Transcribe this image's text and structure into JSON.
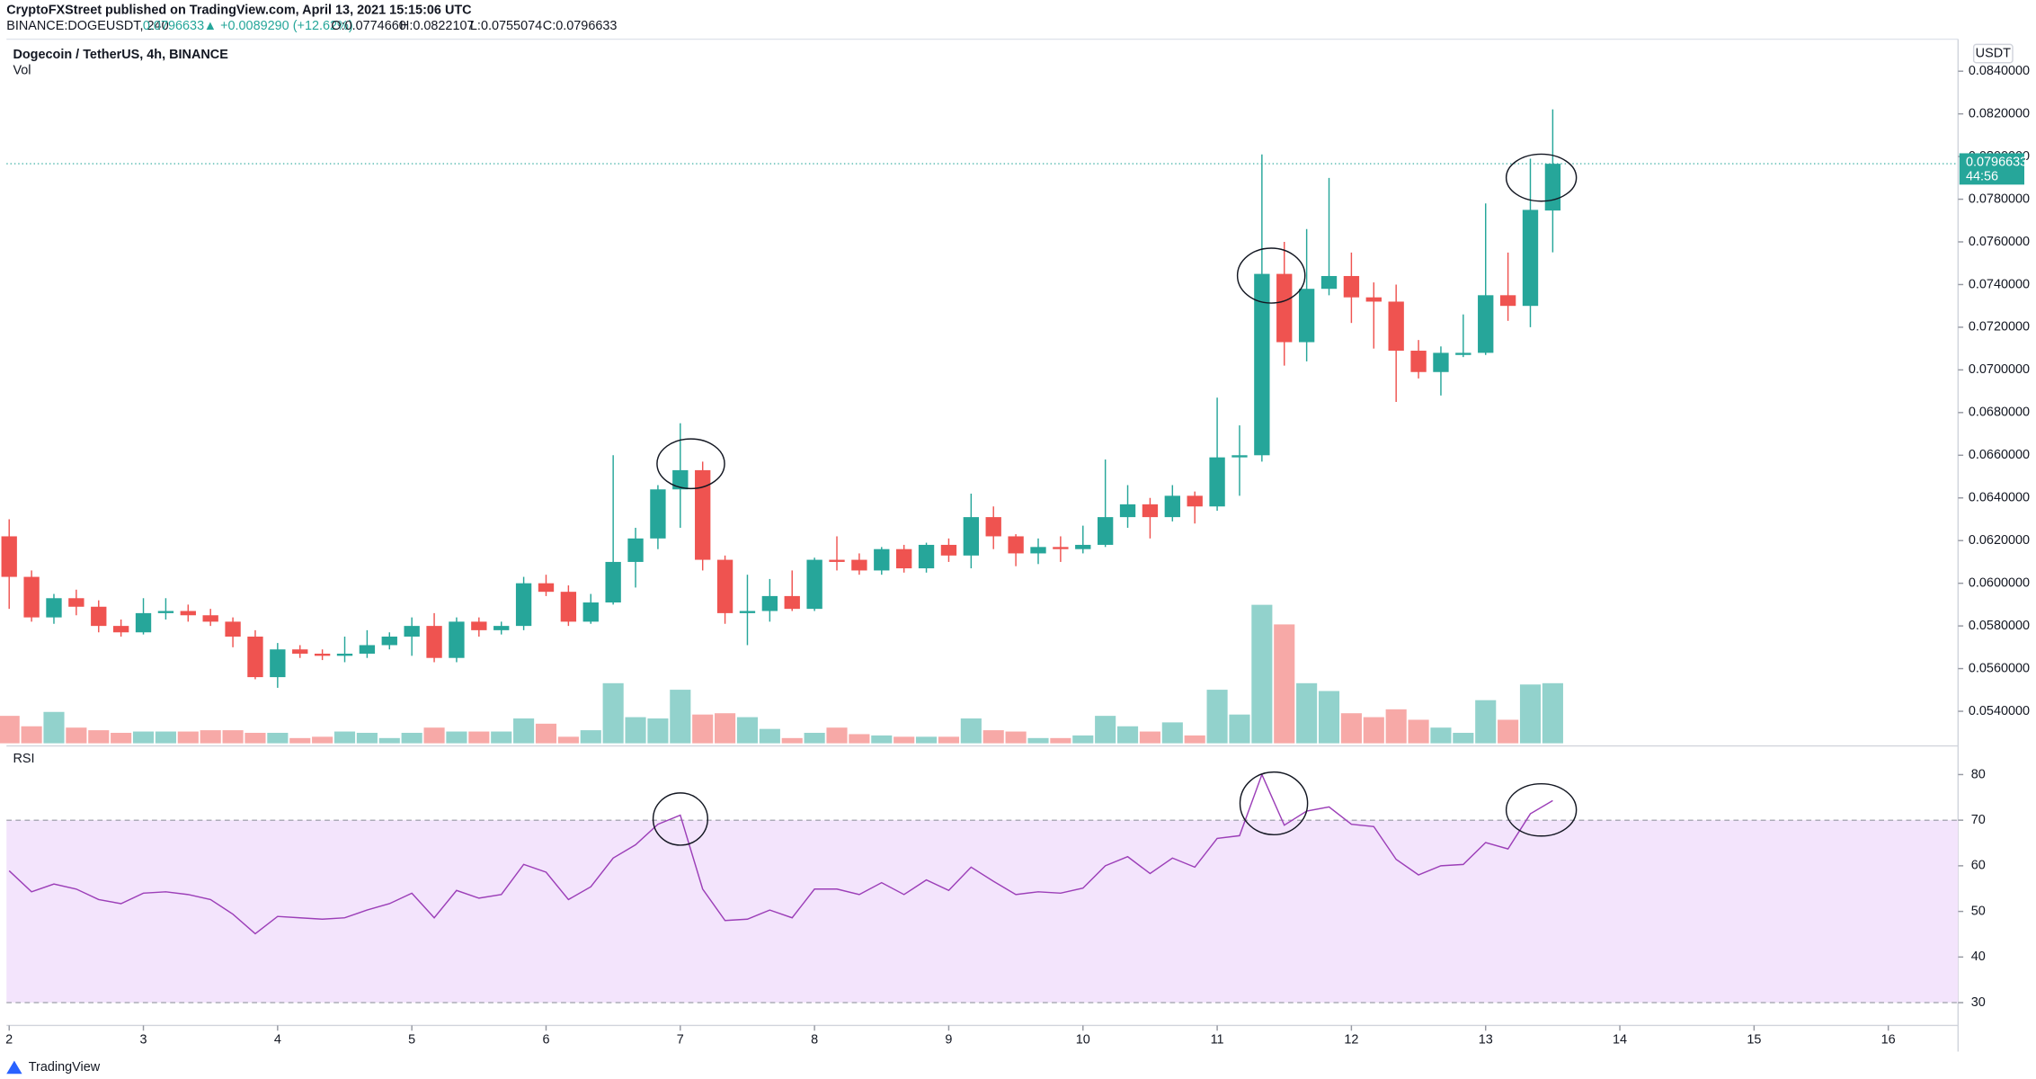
{
  "header": {
    "attribution": "CryptoFXStreet published on TradingView.com, April 13, 2021 15:15:06 UTC",
    "symbol": "BINANCE:DOGEUSDT, 240",
    "last": "0.0796633",
    "change": "▲ +0.0089290 (+12.62%)",
    "ohlc": [
      "O:0.0774660",
      "H:0.0822107",
      "L:0.0755074",
      "C:0.0796633"
    ],
    "brand": "TradingView"
  },
  "chart_data": {
    "type": "candlestick",
    "title": "Dogecoin / TetherUS, 4h, BINANCE",
    "volume_label": "Vol",
    "currency": "USDT",
    "x": [
      2,
      2.1667,
      2.3333,
      2.5,
      2.6667,
      2.8333,
      3,
      3.1667,
      3.3333,
      3.5,
      3.6667,
      3.8333,
      4,
      4.1667,
      4.3333,
      4.5,
      4.6667,
      4.8333,
      5,
      5.1667,
      5.3333,
      5.5,
      5.6667,
      5.8333,
      6,
      6.1667,
      6.3333,
      6.5,
      6.6667,
      6.8333,
      7,
      7.1667,
      7.3333,
      7.5,
      7.6667,
      7.8333,
      8,
      8.1667,
      8.3333,
      8.5,
      8.6667,
      8.8333,
      9,
      9.1667,
      9.3333,
      9.5,
      9.6667,
      9.8333,
      10,
      10.1667,
      10.3333,
      10.5,
      10.6667,
      10.8333,
      11,
      11.1667,
      11.3333,
      11.5,
      11.6667,
      11.8333,
      12,
      12.1667,
      12.3333,
      12.5,
      12.6667,
      12.8333,
      13,
      13.1667,
      13.3333,
      13.5
    ],
    "open": [
      0.0622,
      0.0603,
      0.0584,
      0.0593,
      0.0589,
      0.058,
      0.0577,
      0.0586,
      0.0587,
      0.0585,
      0.0582,
      0.0575,
      0.0556,
      0.0569,
      0.0567,
      0.0566,
      0.0567,
      0.0571,
      0.0575,
      0.058,
      0.0565,
      0.0582,
      0.0578,
      0.058,
      0.06,
      0.0596,
      0.0582,
      0.0591,
      0.061,
      0.0621,
      0.0644,
      0.0653,
      0.0611,
      0.0586,
      0.0587,
      0.0594,
      0.0588,
      0.0611,
      0.0611,
      0.0606,
      0.0616,
      0.0607,
      0.0618,
      0.0613,
      0.0631,
      0.0622,
      0.0614,
      0.0617,
      0.0616,
      0.0618,
      0.0631,
      0.0637,
      0.0631,
      0.0641,
      0.0636,
      0.0659,
      0.066,
      0.0745,
      0.0713,
      0.0738,
      0.0744,
      0.0734,
      0.0732,
      0.0709,
      0.0699,
      0.0707,
      0.0708,
      0.0735,
      0.073,
      0.07747
    ],
    "high": [
      0.063,
      0.0606,
      0.0595,
      0.0597,
      0.0592,
      0.0583,
      0.0593,
      0.0593,
      0.059,
      0.0588,
      0.0584,
      0.0578,
      0.0572,
      0.0571,
      0.0569,
      0.0575,
      0.0578,
      0.0577,
      0.0584,
      0.0586,
      0.0584,
      0.0584,
      0.0582,
      0.0603,
      0.0604,
      0.0599,
      0.0595,
      0.066,
      0.0626,
      0.0646,
      0.0675,
      0.0657,
      0.0613,
      0.0604,
      0.0602,
      0.0606,
      0.0612,
      0.0622,
      0.0614,
      0.0617,
      0.0618,
      0.0619,
      0.0621,
      0.0642,
      0.0636,
      0.0623,
      0.0621,
      0.0622,
      0.0627,
      0.0658,
      0.0646,
      0.064,
      0.0646,
      0.0643,
      0.0687,
      0.0674,
      0.0801,
      0.076,
      0.0766,
      0.079,
      0.0755,
      0.0741,
      0.074,
      0.0714,
      0.0711,
      0.0726,
      0.0778,
      0.0755,
      0.0799,
      0.08221
    ],
    "low": [
      0.0588,
      0.0582,
      0.0581,
      0.0585,
      0.0577,
      0.0575,
      0.0576,
      0.0583,
      0.0582,
      0.058,
      0.057,
      0.0555,
      0.0551,
      0.0565,
      0.0564,
      0.0563,
      0.0565,
      0.0569,
      0.0566,
      0.0563,
      0.0563,
      0.0575,
      0.0576,
      0.0578,
      0.0594,
      0.058,
      0.0581,
      0.059,
      0.0598,
      0.0616,
      0.0626,
      0.0606,
      0.0581,
      0.0571,
      0.0582,
      0.0587,
      0.0587,
      0.0606,
      0.0604,
      0.0604,
      0.0605,
      0.0605,
      0.061,
      0.0607,
      0.0616,
      0.0608,
      0.0609,
      0.061,
      0.0614,
      0.0617,
      0.0626,
      0.0621,
      0.0629,
      0.0628,
      0.0634,
      0.0641,
      0.0657,
      0.0702,
      0.0704,
      0.0735,
      0.0722,
      0.071,
      0.0685,
      0.0696,
      0.0688,
      0.0706,
      0.0707,
      0.0723,
      0.072,
      0.07551
    ],
    "close": [
      0.0603,
      0.0584,
      0.0593,
      0.0589,
      0.058,
      0.0577,
      0.0586,
      0.0587,
      0.0585,
      0.0582,
      0.0575,
      0.0556,
      0.0569,
      0.0567,
      0.0566,
      0.0567,
      0.0571,
      0.0575,
      0.058,
      0.0565,
      0.0582,
      0.0578,
      0.058,
      0.06,
      0.0596,
      0.0582,
      0.0591,
      0.061,
      0.0621,
      0.0644,
      0.0653,
      0.0611,
      0.0586,
      0.0587,
      0.0594,
      0.0588,
      0.0611,
      0.061,
      0.0606,
      0.0616,
      0.0607,
      0.0618,
      0.0613,
      0.0631,
      0.0622,
      0.0614,
      0.0617,
      0.0616,
      0.0618,
      0.0631,
      0.0637,
      0.0631,
      0.0641,
      0.0636,
      0.0659,
      0.066,
      0.0745,
      0.0713,
      0.0738,
      0.0744,
      0.0734,
      0.0732,
      0.0709,
      0.0699,
      0.0708,
      0.0708,
      0.0735,
      0.073,
      0.0775,
      0.07966
    ],
    "volume": [
      21,
      13,
      24,
      12,
      10,
      8,
      9,
      9,
      9,
      10,
      10,
      8,
      8,
      4,
      5,
      9,
      8,
      4,
      8,
      12,
      9,
      9,
      9,
      19,
      15,
      5,
      10,
      46,
      20,
      19,
      41,
      22,
      23,
      20,
      11,
      4,
      8,
      12,
      7,
      6,
      5,
      5,
      5,
      19,
      10,
      9,
      4,
      4,
      6,
      21,
      13,
      9,
      16,
      6,
      41,
      22,
      106,
      91,
      46,
      40,
      23,
      20,
      26,
      18,
      12,
      8,
      33,
      18,
      45,
      46
    ],
    "up_color": "#26a69a",
    "down_color": "#ef5350",
    "last_price": 0.0796633,
    "countdown": "44:56",
    "ylim": [
      0.0525,
      0.0855
    ],
    "yticks": [
      {
        "value": 0.054,
        "label": "0.0540000"
      },
      {
        "value": 0.056,
        "label": "0.0560000"
      },
      {
        "value": 0.058,
        "label": "0.0580000"
      },
      {
        "value": 0.06,
        "label": "0.0600000"
      },
      {
        "value": 0.062,
        "label": "0.0620000"
      },
      {
        "value": 0.064,
        "label": "0.0640000"
      },
      {
        "value": 0.066,
        "label": "0.0660000"
      },
      {
        "value": 0.068,
        "label": "0.0680000"
      },
      {
        "value": 0.07,
        "label": "0.0700000"
      },
      {
        "value": 0.072,
        "label": "0.0720000"
      },
      {
        "value": 0.074,
        "label": "0.0740000"
      },
      {
        "value": 0.076,
        "label": "0.0760000"
      },
      {
        "value": 0.078,
        "label": "0.0780000"
      },
      {
        "value": 0.08,
        "label": "0.0800000"
      },
      {
        "value": 0.082,
        "label": "0.0820000"
      },
      {
        "value": 0.084,
        "label": "0.0840000"
      }
    ],
    "xlim": [
      1.98,
      16.52
    ],
    "xticks": [
      2,
      3,
      4,
      5,
      6,
      7,
      8,
      9,
      10,
      11,
      12,
      13,
      14,
      15,
      16
    ],
    "rsi": {
      "label": "RSI",
      "color": "#9c3fb8",
      "band_color": "#f3e4fc",
      "ylim": [
        25,
        86
      ],
      "yticks": [
        30,
        40,
        50,
        60,
        70,
        80
      ],
      "levels": [
        30,
        70
      ],
      "values": [
        58.9,
        54.3,
        56,
        54.9,
        52.6,
        51.7,
        54,
        54.3,
        53.7,
        52.6,
        49.4,
        45.1,
        48.9,
        48.6,
        48.3,
        48.6,
        50.3,
        51.7,
        54,
        48.6,
        54.6,
        52.9,
        53.7,
        60.3,
        58.6,
        52.6,
        55.4,
        61.7,
        64.6,
        69.1,
        71.1,
        54.9,
        48,
        48.3,
        50.3,
        48.6,
        54.9,
        54.9,
        53.7,
        56.3,
        53.7,
        56.9,
        54.6,
        59.7,
        56.6,
        53.7,
        54.3,
        54,
        55.1,
        60,
        62,
        58.3,
        61.7,
        59.7,
        66,
        66.6,
        80,
        68.9,
        72,
        72.9,
        69.1,
        68.6,
        61.4,
        58,
        60,
        60.3,
        65.1,
        63.7,
        71.4,
        74.3
      ]
    }
  }
}
